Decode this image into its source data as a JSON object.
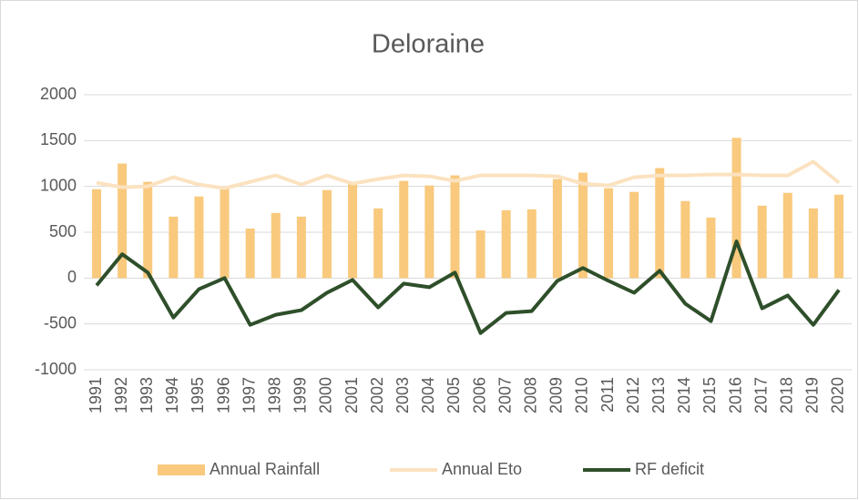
{
  "chart_data": {
    "type": "combo",
    "title": "Deloraine",
    "categories": [
      "1991",
      "1992",
      "1993",
      "1994",
      "1995",
      "1996",
      "1997",
      "1998",
      "1999",
      "2000",
      "2001",
      "2002",
      "2003",
      "2004",
      "2005",
      "2006",
      "2007",
      "2008",
      "2009",
      "2010",
      "2011",
      "2012",
      "2013",
      "2014",
      "2015",
      "2016",
      "2017",
      "2018",
      "2019",
      "2020"
    ],
    "series": [
      {
        "name": "Annual Rainfall",
        "type": "bar",
        "color": "#f9c97d",
        "values": [
          970,
          1250,
          1050,
          670,
          890,
          980,
          540,
          710,
          670,
          960,
          1030,
          760,
          1060,
          1010,
          1120,
          520,
          740,
          750,
          1080,
          1150,
          980,
          940,
          1200,
          840,
          660,
          1530,
          790,
          930,
          760,
          910
        ]
      },
      {
        "name": "Annual Eto",
        "type": "line",
        "color": "#fbe2c0",
        "values": [
          1040,
          990,
          1000,
          1100,
          1020,
          980,
          1050,
          1120,
          1020,
          1120,
          1030,
          1080,
          1120,
          1110,
          1060,
          1120,
          1120,
          1120,
          1110,
          1030,
          1010,
          1100,
          1120,
          1120,
          1130,
          1130,
          1120,
          1120,
          1270,
          1040
        ]
      },
      {
        "name": "RF deficit",
        "type": "line",
        "color": "#2e4f2a",
        "values": [
          -80,
          260,
          60,
          -430,
          -120,
          0,
          -510,
          -400,
          -350,
          -160,
          -20,
          -320,
          -60,
          -100,
          60,
          -600,
          -380,
          -360,
          -30,
          110,
          -30,
          -160,
          80,
          -280,
          -470,
          400,
          -330,
          -190,
          -510,
          -130
        ]
      }
    ],
    "ylim": [
      -1000,
      2000
    ],
    "yticks": [
      -1000,
      -500,
      0,
      500,
      1000,
      1500,
      2000
    ],
    "grid": true,
    "legend": "bottom"
  }
}
